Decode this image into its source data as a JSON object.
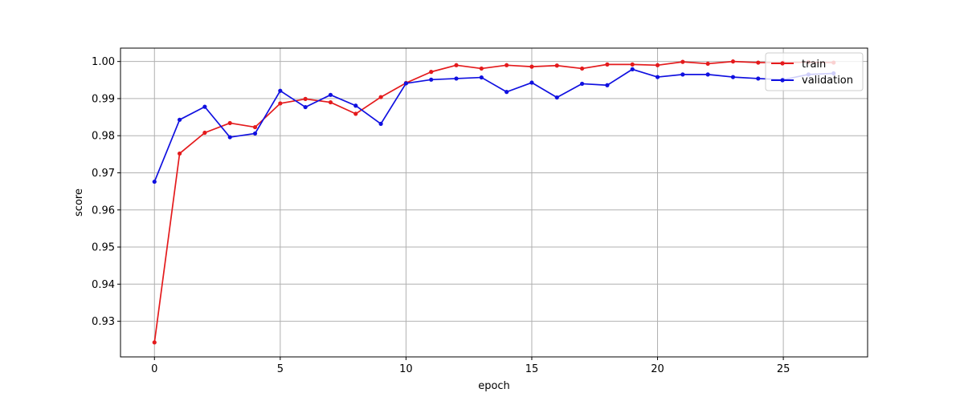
{
  "chart_data": {
    "type": "line",
    "title": "",
    "xlabel": "epoch",
    "ylabel": "score",
    "xlim": [
      -1.35,
      28.35
    ],
    "ylim": [
      0.9204,
      1.0036
    ],
    "xticks": [
      0,
      5,
      10,
      15,
      20,
      25
    ],
    "xtick_labels": [
      "0",
      "5",
      "10",
      "15",
      "20",
      "25"
    ],
    "yticks": [
      0.93,
      0.94,
      0.95,
      0.96,
      0.97,
      0.98,
      0.99,
      1.0
    ],
    "ytick_labels": [
      "0.93",
      "0.94",
      "0.95",
      "0.96",
      "0.97",
      "0.98",
      "0.99",
      "1.00"
    ],
    "grid": true,
    "legend_position": "top-right",
    "x": [
      0,
      1,
      2,
      3,
      4,
      5,
      6,
      7,
      8,
      9,
      10,
      11,
      12,
      13,
      14,
      15,
      16,
      17,
      18,
      19,
      20,
      21,
      22,
      23,
      24,
      25,
      26,
      27
    ],
    "series": [
      {
        "name": "train",
        "color": "#e41a1c",
        "values": [
          0.9243,
          0.9752,
          0.9808,
          0.9834,
          0.9823,
          0.9887,
          0.9899,
          0.989,
          0.9859,
          0.9904,
          0.9942,
          0.9972,
          0.999,
          0.9981,
          0.999,
          0.9986,
          0.9989,
          0.9981,
          0.9992,
          0.9992,
          0.999,
          0.9999,
          0.9994,
          1.0,
          0.9997,
          0.9997,
          0.9998,
          0.9997
        ]
      },
      {
        "name": "validation",
        "color": "#1010e0",
        "values": [
          0.9676,
          0.9843,
          0.9878,
          0.9796,
          0.9806,
          0.9921,
          0.9877,
          0.991,
          0.9881,
          0.9832,
          0.9941,
          0.9951,
          0.9954,
          0.9957,
          0.9918,
          0.9943,
          0.9903,
          0.994,
          0.9936,
          0.9979,
          0.9958,
          0.9965,
          0.9965,
          0.9958,
          0.9954,
          0.9951,
          0.9965,
          0.9968
        ]
      }
    ]
  }
}
